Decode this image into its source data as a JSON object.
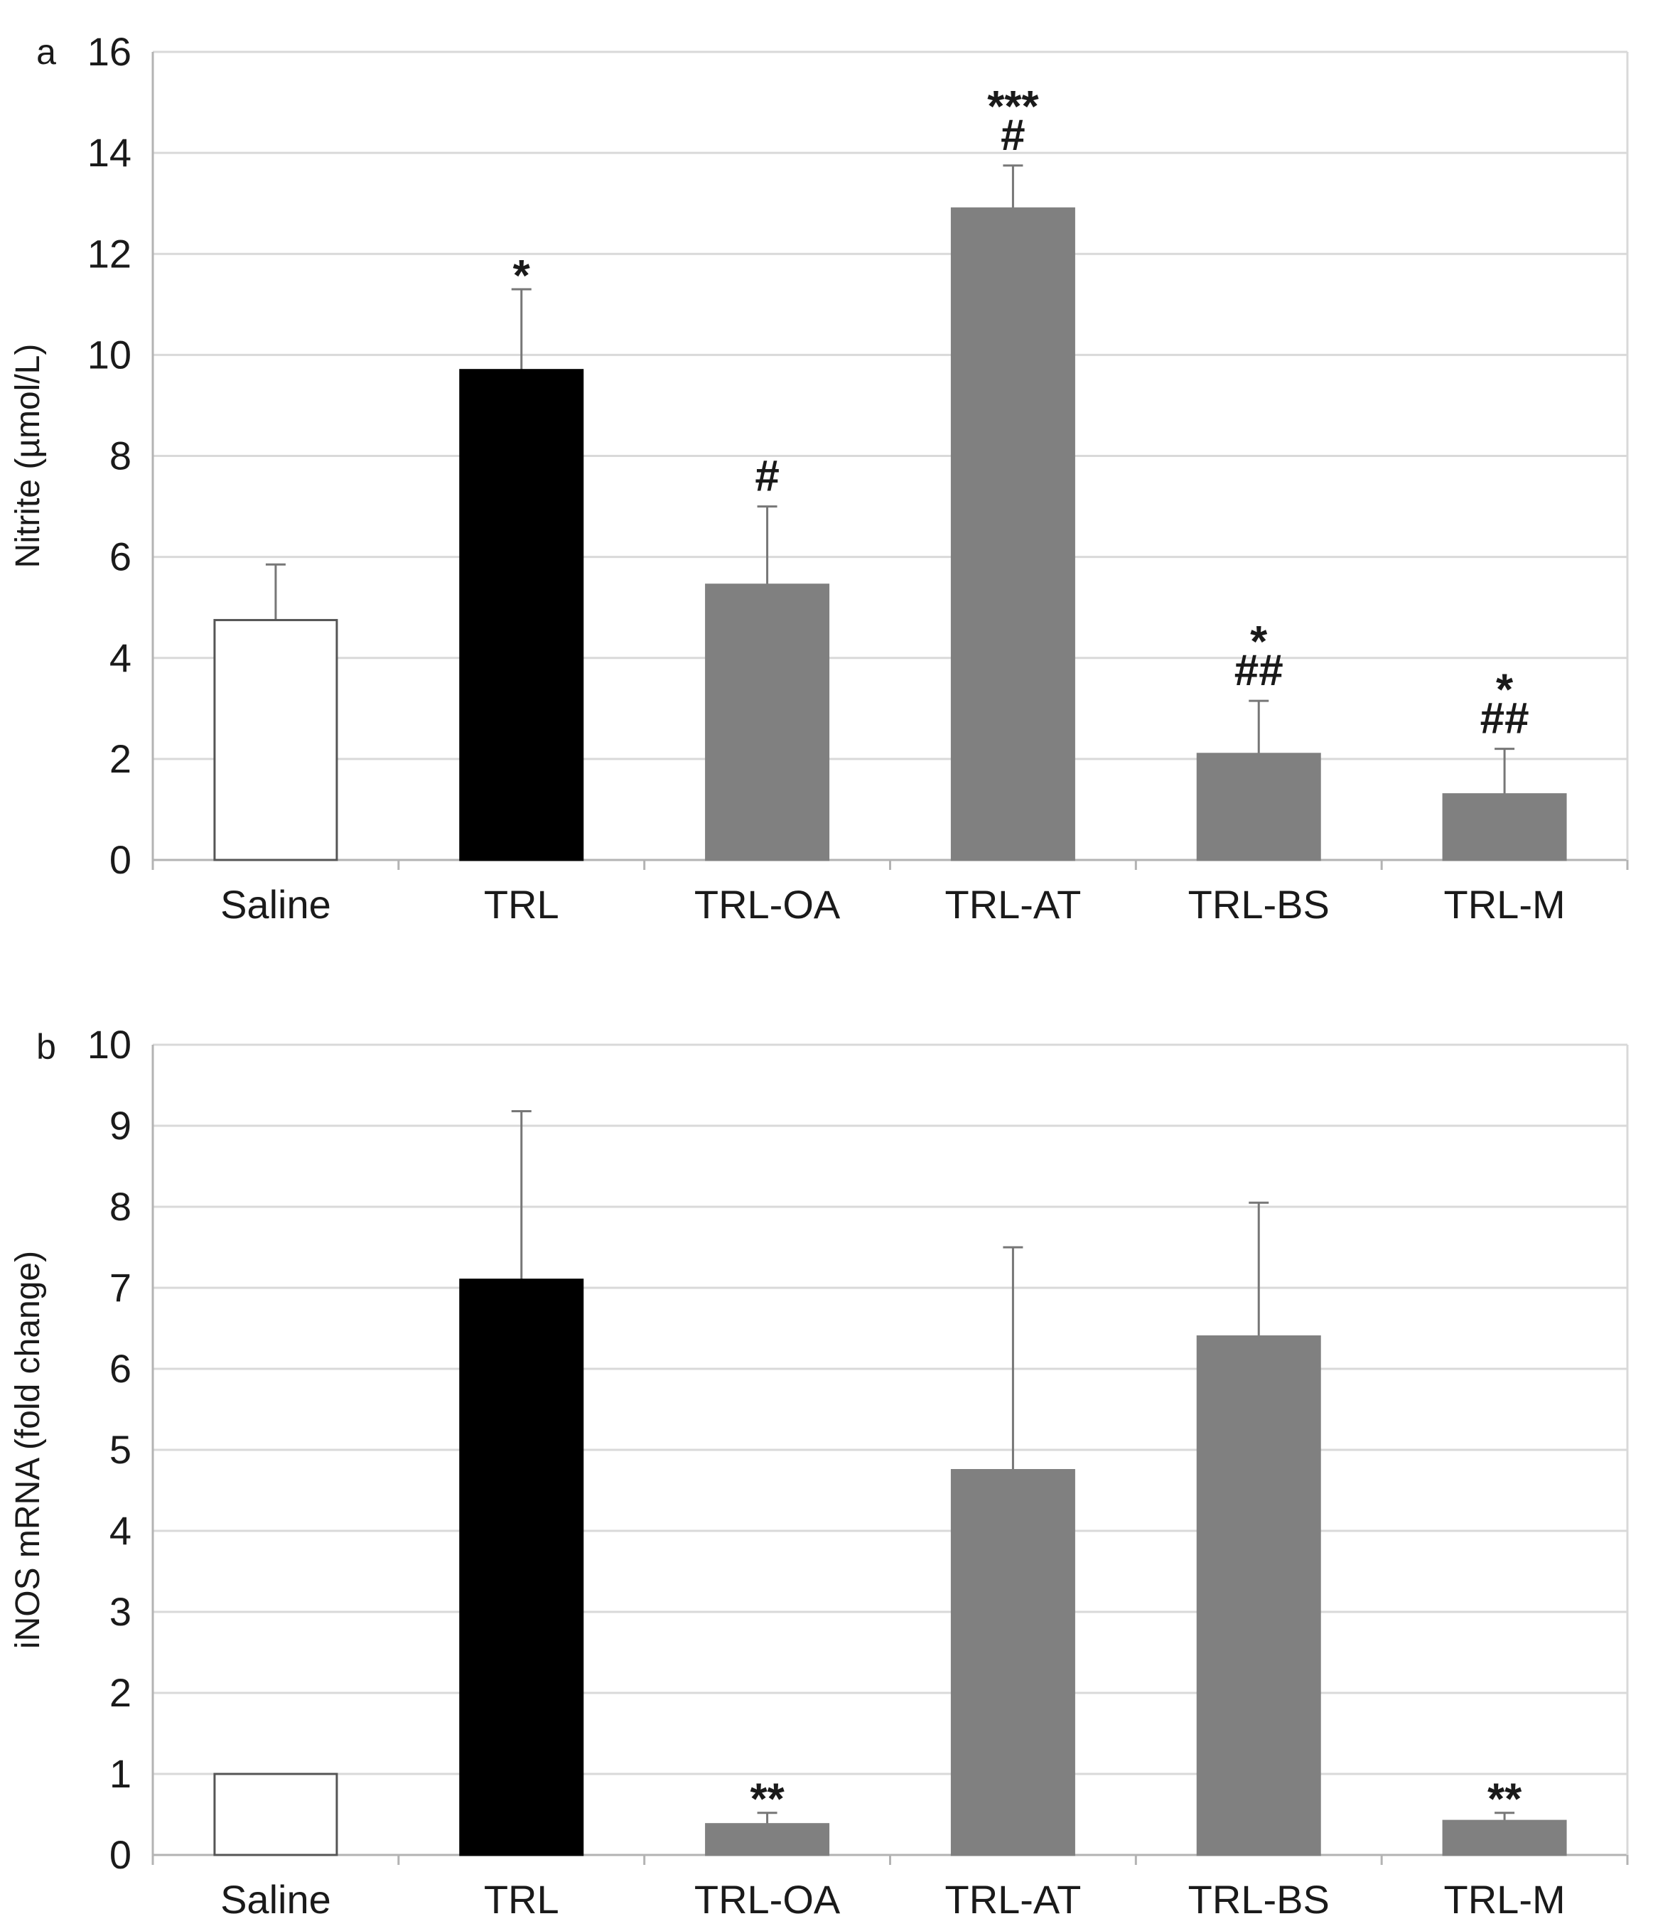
{
  "chart_data": [
    {
      "type": "bar",
      "panel_label": "a",
      "title": "",
      "xlabel": "",
      "ylabel": "Nitrite (µmol/L)",
      "ylim": [
        0,
        16
      ],
      "yticks": [
        0,
        2,
        4,
        6,
        8,
        10,
        12,
        14,
        16
      ],
      "grid": true,
      "categories": [
        "Saline",
        "TRL",
        "TRL-OA",
        "TRL-AT",
        "TRL-BS",
        "TRL-M"
      ],
      "values": [
        4.75,
        9.7,
        5.45,
        12.9,
        2.1,
        1.3
      ],
      "errors": [
        1.1,
        1.6,
        1.55,
        0.85,
        1.05,
        0.9
      ],
      "bar_colors": [
        "#ffffff",
        "#000000",
        "#808080",
        "#808080",
        "#808080",
        "#808080"
      ],
      "annotations": [
        [],
        [
          "*"
        ],
        [
          "#"
        ],
        [
          "***",
          "#"
        ],
        [
          "*",
          "##"
        ],
        [
          "*",
          "##"
        ]
      ]
    },
    {
      "type": "bar",
      "panel_label": "b",
      "title": "",
      "xlabel": "",
      "ylabel": "iNOS mRNA (fold change)",
      "ylim": [
        0,
        10
      ],
      "yticks": [
        0,
        1,
        2,
        3,
        4,
        5,
        6,
        7,
        8,
        9,
        10
      ],
      "grid": true,
      "categories": [
        "Saline",
        "TRL",
        "TRL-OA",
        "TRL-AT",
        "TRL-BS",
        "TRL-M"
      ],
      "values": [
        1.0,
        7.1,
        0.38,
        4.75,
        6.4,
        0.42
      ],
      "errors": [
        0,
        2.08,
        0.14,
        2.75,
        1.65,
        0.1
      ],
      "bar_colors": [
        "#ffffff",
        "#000000",
        "#808080",
        "#808080",
        "#808080",
        "#808080"
      ],
      "annotations": [
        [],
        [],
        [
          "**"
        ],
        [],
        [],
        [
          "**"
        ]
      ]
    }
  ]
}
